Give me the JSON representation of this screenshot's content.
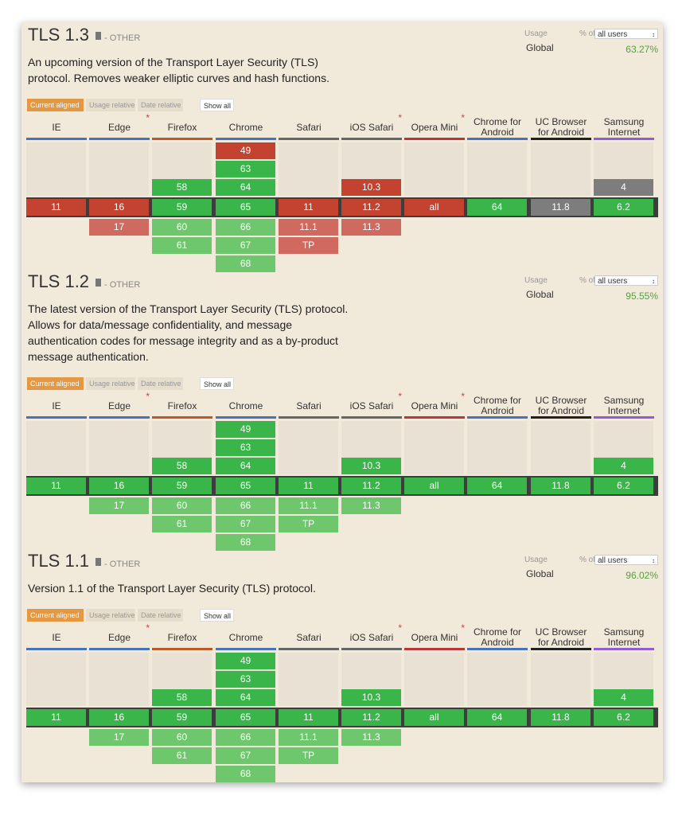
{
  "ui": {
    "usage_label": "Usage",
    "pct_of": "% of",
    "users_select": "all users",
    "global_label": "Global",
    "btn_current": "Current aligned",
    "btn_usage": "Usage relative",
    "btn_date": "Date relative",
    "btn_showall": "Show all"
  },
  "browsers": [
    {
      "name": "IE",
      "color": "#4a72b6",
      "star": false
    },
    {
      "name": "Edge",
      "color": "#4a72b6",
      "star": true
    },
    {
      "name": "Firefox",
      "color": "#b85a2a",
      "star": false
    },
    {
      "name": "Chrome",
      "color": "#4a72b6",
      "star": false
    },
    {
      "name": "Safari",
      "color": "#666666",
      "star": false
    },
    {
      "name": "iOS Safari",
      "color": "#666666",
      "star": true
    },
    {
      "name": "Opera Mini",
      "color": "#b8383a",
      "star": true
    },
    {
      "name": "Chrome for Android",
      "color": "#4a72b6",
      "star": false
    },
    {
      "name": "UC Browser for Android",
      "color": "#222222",
      "star": false
    },
    {
      "name": "Samsung Internet",
      "color": "#8d5fd0",
      "star": false
    }
  ],
  "features": [
    {
      "title": "TLS 1.3",
      "category": "- OTHER",
      "description": "An upcoming version of the Transport Layer Security (TLS) protocol. Removes weaker elliptic curves and hash functions.",
      "usage": "63.27%",
      "columns": [
        {
          "past": [],
          "current": {
            "v": "11",
            "s": "n"
          },
          "future": []
        },
        {
          "past": [],
          "current": {
            "v": "16",
            "s": "n"
          },
          "future": [
            {
              "v": "17",
              "s": "nl"
            }
          ]
        },
        {
          "past": [
            {
              "v": "58",
              "s": "y"
            }
          ],
          "current": {
            "v": "59",
            "s": "y"
          },
          "future": [
            {
              "v": "60",
              "s": "yl"
            },
            {
              "v": "61",
              "s": "yl"
            }
          ]
        },
        {
          "past": [
            {
              "v": "49",
              "s": "n"
            },
            {
              "v": "63",
              "s": "y"
            },
            {
              "v": "64",
              "s": "y"
            }
          ],
          "current": {
            "v": "65",
            "s": "y"
          },
          "future": [
            {
              "v": "66",
              "s": "yl"
            },
            {
              "v": "67",
              "s": "yl"
            },
            {
              "v": "68",
              "s": "yl"
            }
          ]
        },
        {
          "past": [],
          "current": {
            "v": "11",
            "s": "n"
          },
          "future": [
            {
              "v": "11.1",
              "s": "nl"
            },
            {
              "v": "TP",
              "s": "nl"
            }
          ]
        },
        {
          "past": [
            {
              "v": "10.3",
              "s": "n"
            }
          ],
          "current": {
            "v": "11.2",
            "s": "n"
          },
          "future": [
            {
              "v": "11.3",
              "s": "nl"
            }
          ]
        },
        {
          "past": [],
          "current": {
            "v": "all",
            "s": "n"
          },
          "future": []
        },
        {
          "past": [],
          "current": {
            "v": "64",
            "s": "y"
          },
          "future": []
        },
        {
          "past": [],
          "current": {
            "v": "11.8",
            "s": "u"
          },
          "future": []
        },
        {
          "past": [
            {
              "v": "4",
              "s": "u"
            }
          ],
          "current": {
            "v": "6.2",
            "s": "y"
          },
          "future": []
        }
      ]
    },
    {
      "title": "TLS 1.2",
      "category": "- OTHER",
      "description": "The latest version of the Transport Layer Security (TLS) protocol. Allows for data/message confidentiality, and message authentication codes for message integrity and as a by-product message authentication.",
      "usage": "95.55%",
      "columns": [
        {
          "past": [],
          "current": {
            "v": "11",
            "s": "y"
          },
          "future": []
        },
        {
          "past": [],
          "current": {
            "v": "16",
            "s": "y"
          },
          "future": [
            {
              "v": "17",
              "s": "yl"
            }
          ]
        },
        {
          "past": [
            {
              "v": "58",
              "s": "y"
            }
          ],
          "current": {
            "v": "59",
            "s": "y"
          },
          "future": [
            {
              "v": "60",
              "s": "yl"
            },
            {
              "v": "61",
              "s": "yl"
            }
          ]
        },
        {
          "past": [
            {
              "v": "49",
              "s": "y"
            },
            {
              "v": "63",
              "s": "y"
            },
            {
              "v": "64",
              "s": "y"
            }
          ],
          "current": {
            "v": "65",
            "s": "y"
          },
          "future": [
            {
              "v": "66",
              "s": "yl"
            },
            {
              "v": "67",
              "s": "yl"
            },
            {
              "v": "68",
              "s": "yl"
            }
          ]
        },
        {
          "past": [],
          "current": {
            "v": "11",
            "s": "y"
          },
          "future": [
            {
              "v": "11.1",
              "s": "yl"
            },
            {
              "v": "TP",
              "s": "yl"
            }
          ]
        },
        {
          "past": [
            {
              "v": "10.3",
              "s": "y"
            }
          ],
          "current": {
            "v": "11.2",
            "s": "y"
          },
          "future": [
            {
              "v": "11.3",
              "s": "yl"
            }
          ]
        },
        {
          "past": [],
          "current": {
            "v": "all",
            "s": "y"
          },
          "future": []
        },
        {
          "past": [],
          "current": {
            "v": "64",
            "s": "y"
          },
          "future": []
        },
        {
          "past": [],
          "current": {
            "v": "11.8",
            "s": "y"
          },
          "future": []
        },
        {
          "past": [
            {
              "v": "4",
              "s": "y"
            }
          ],
          "current": {
            "v": "6.2",
            "s": "y"
          },
          "future": []
        }
      ]
    },
    {
      "title": "TLS 1.1",
      "category": "- OTHER",
      "description": "Version 1.1 of the Transport Layer Security (TLS) protocol.",
      "usage": "96.02%",
      "columns": [
        {
          "past": [],
          "current": {
            "v": "11",
            "s": "y"
          },
          "future": []
        },
        {
          "past": [],
          "current": {
            "v": "16",
            "s": "y"
          },
          "future": [
            {
              "v": "17",
              "s": "yl"
            }
          ]
        },
        {
          "past": [
            {
              "v": "58",
              "s": "y"
            }
          ],
          "current": {
            "v": "59",
            "s": "y"
          },
          "future": [
            {
              "v": "60",
              "s": "yl"
            },
            {
              "v": "61",
              "s": "yl"
            }
          ]
        },
        {
          "past": [
            {
              "v": "49",
              "s": "y"
            },
            {
              "v": "63",
              "s": "y"
            },
            {
              "v": "64",
              "s": "y"
            }
          ],
          "current": {
            "v": "65",
            "s": "y"
          },
          "future": [
            {
              "v": "66",
              "s": "yl"
            },
            {
              "v": "67",
              "s": "yl"
            },
            {
              "v": "68",
              "s": "yl"
            }
          ]
        },
        {
          "past": [],
          "current": {
            "v": "11",
            "s": "y"
          },
          "future": [
            {
              "v": "11.1",
              "s": "yl"
            },
            {
              "v": "TP",
              "s": "yl"
            }
          ]
        },
        {
          "past": [
            {
              "v": "10.3",
              "s": "y"
            }
          ],
          "current": {
            "v": "11.2",
            "s": "y"
          },
          "future": [
            {
              "v": "11.3",
              "s": "yl"
            }
          ]
        },
        {
          "past": [],
          "current": {
            "v": "all",
            "s": "y"
          },
          "future": []
        },
        {
          "past": [],
          "current": {
            "v": "64",
            "s": "y"
          },
          "future": []
        },
        {
          "past": [],
          "current": {
            "v": "11.8",
            "s": "y"
          },
          "future": []
        },
        {
          "past": [
            {
              "v": "4",
              "s": "y"
            }
          ],
          "current": {
            "v": "6.2",
            "s": "y"
          },
          "future": []
        }
      ]
    }
  ]
}
